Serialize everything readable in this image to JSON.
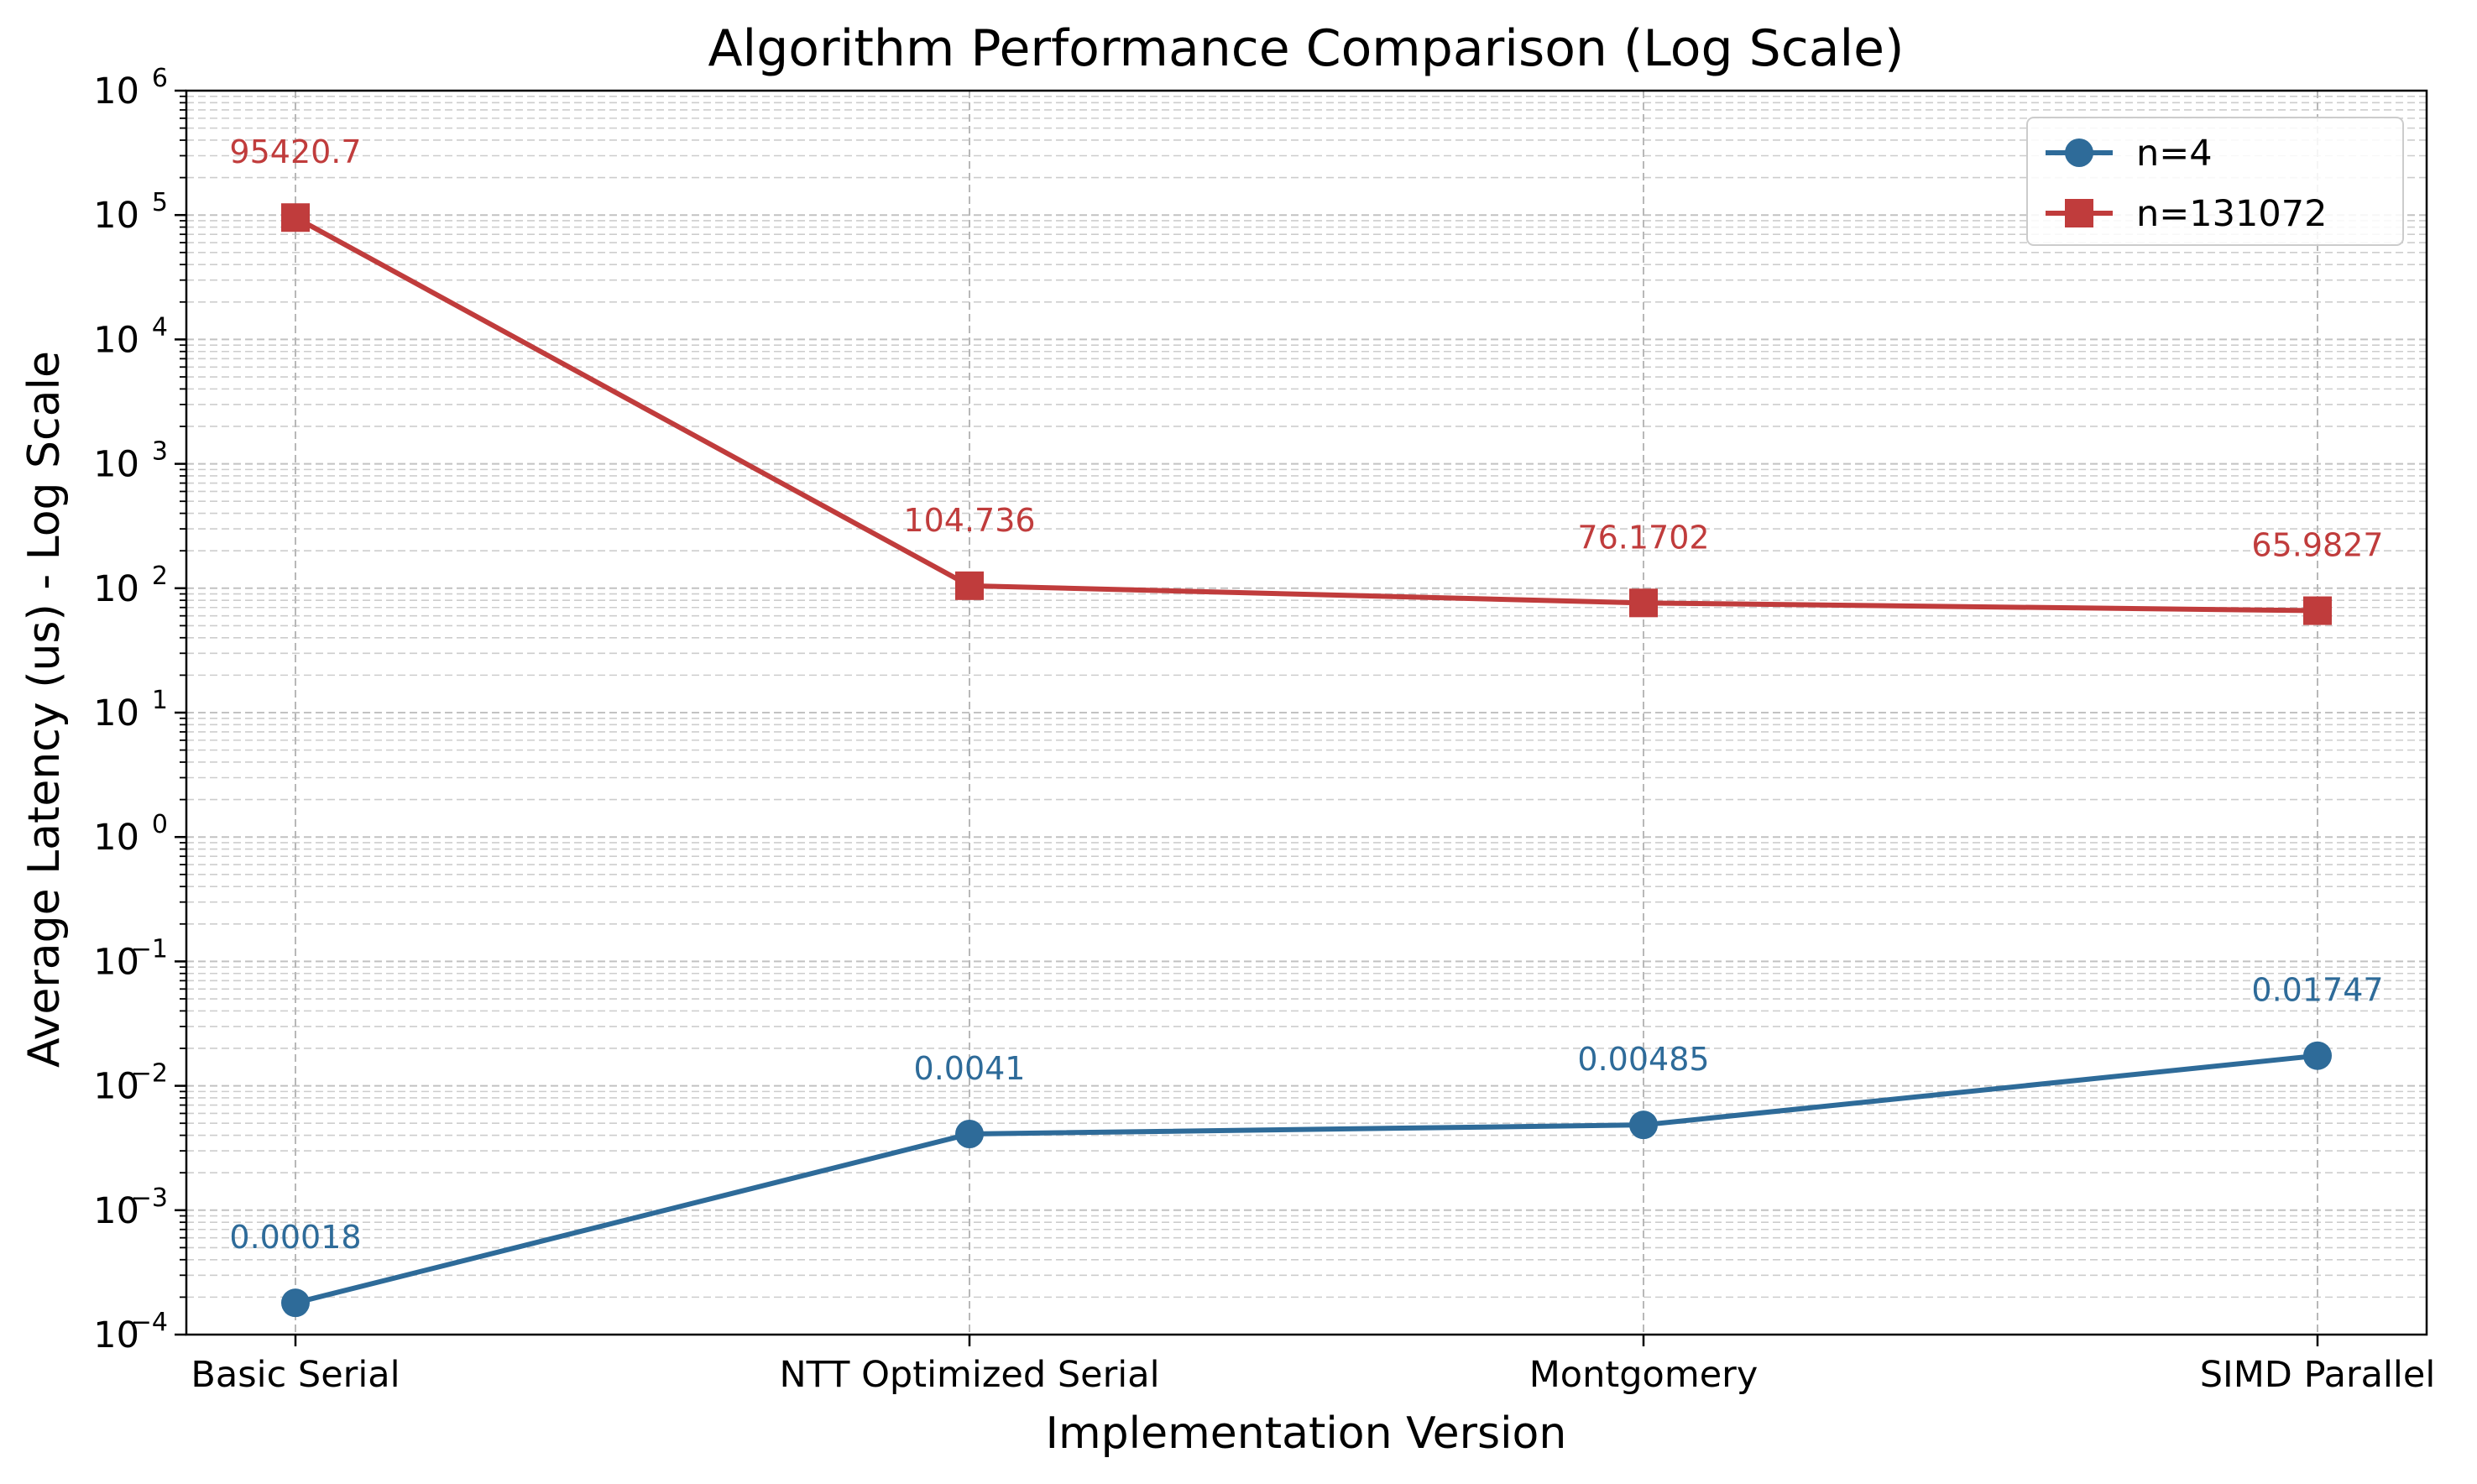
{
  "chart_data": {
    "type": "line",
    "title": "Algorithm Performance Comparison (Log Scale)",
    "xlabel": "Implementation Version",
    "ylabel": "Average Latency (us) - Log Scale",
    "categories": [
      "Basic Serial",
      "NTT Optimized Serial",
      "Montgomery",
      "SIMD Parallel"
    ],
    "yscale": "log",
    "ylim": [
      0.0001,
      1000000
    ],
    "y_ticks": [
      {
        "base": "10",
        "exp": "−4"
      },
      {
        "base": "10",
        "exp": "−3"
      },
      {
        "base": "10",
        "exp": "−2"
      },
      {
        "base": "10",
        "exp": "−1"
      },
      {
        "base": "10",
        "exp": "0"
      },
      {
        "base": "10",
        "exp": "1"
      },
      {
        "base": "10",
        "exp": "2"
      },
      {
        "base": "10",
        "exp": "3"
      },
      {
        "base": "10",
        "exp": "4"
      },
      {
        "base": "10",
        "exp": "5"
      },
      {
        "base": "10",
        "exp": "6"
      }
    ],
    "grid": true,
    "legend_position": "top-right",
    "series": [
      {
        "name": "n=4",
        "values": [
          0.00018,
          0.0041,
          0.00485,
          0.01747
        ],
        "labels": [
          "0.00018",
          "0.0041",
          "0.00485",
          "0.01747"
        ],
        "color": "#2e6b99",
        "marker": "circle"
      },
      {
        "name": "n=131072",
        "values": [
          95420.7,
          104.736,
          76.1702,
          65.9827
        ],
        "labels": [
          "95420.7",
          "104.736",
          "76.1702",
          "65.9827"
        ],
        "color": "#c03c3c",
        "marker": "square"
      }
    ]
  }
}
